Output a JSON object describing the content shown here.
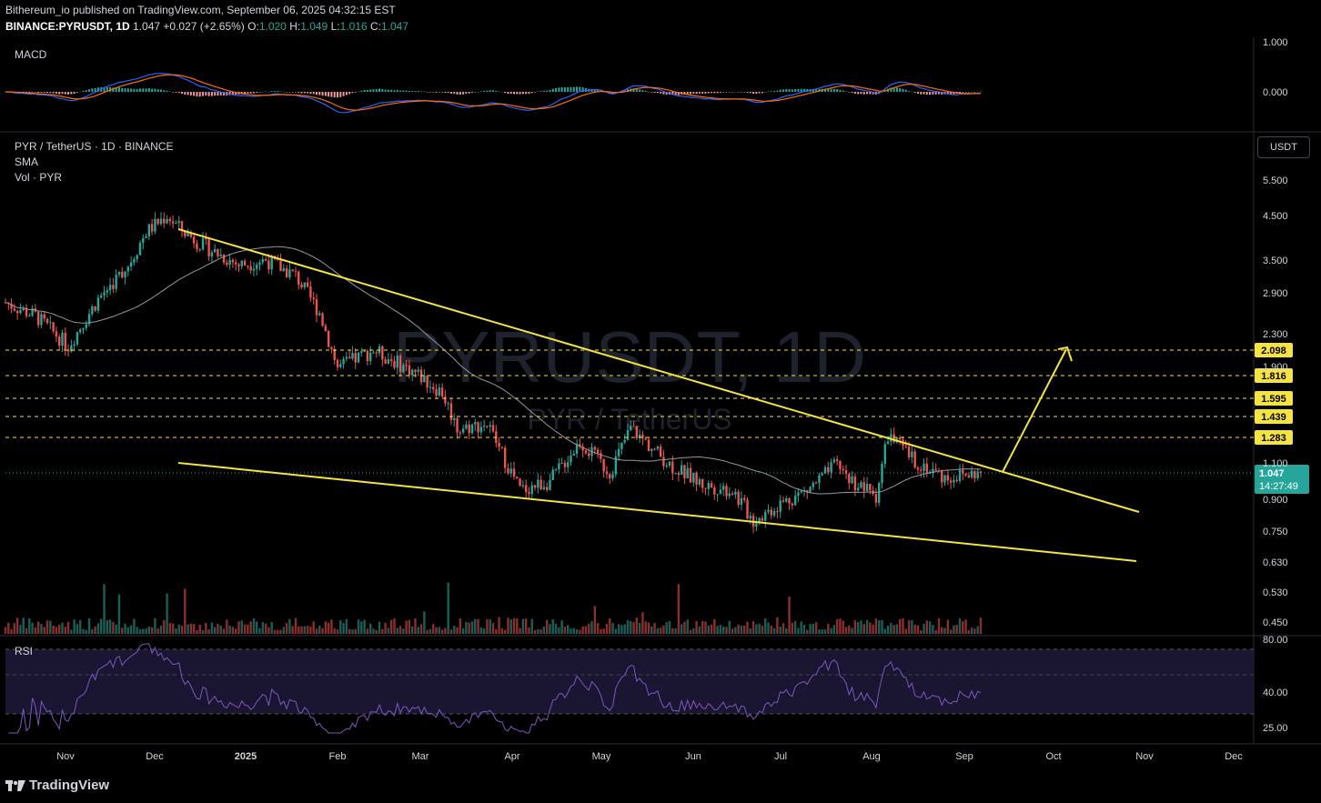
{
  "header": {
    "publisher_line": "Bithereum_io published on TradingView.com, September 06, 2025 04:32:15 EST",
    "symbol": "BINANCE:PYRUSDT, 1D",
    "last": "1.047",
    "change": "+0.027 (+2.65%)",
    "o_label": "O:",
    "o": "1.020",
    "h_label": "H:",
    "h": "1.049",
    "l_label": "L:",
    "l": "1.016",
    "c_label": "C:",
    "c": "1.047"
  },
  "legend": {
    "macd": "MACD",
    "pair": "PYR / TetherUS · 1D · BINANCE",
    "sma": "SMA",
    "vol": "Vol · PYR",
    "rsi": "RSI"
  },
  "watermark": {
    "main": "PYRUSDT, 1D",
    "sub": "PYR / TetherUS"
  },
  "currency_button": "USDT",
  "footer": {
    "brand": "TradingView"
  },
  "colors": {
    "up": "#26a69a",
    "down": "#ef5350",
    "trend": "#f5e342",
    "sma": "#9598a1",
    "rsi": "#7e57c2",
    "macd": "#2962ff",
    "signal": "#ff6d00",
    "label_bg": "#f5e342",
    "price_bg": "#26a69a"
  },
  "chart_data": {
    "type": "candlestick",
    "x_axis_labels": [
      "Nov",
      "Dec",
      "2025",
      "Feb",
      "Mar",
      "Apr",
      "May",
      "Jun",
      "Jul",
      "Aug",
      "Sep",
      "Oct",
      "Nov",
      "Dec"
    ],
    "price_axis": {
      "scale": "log",
      "ticks": [
        "5.500",
        "4.500",
        "3.500",
        "2.900",
        "2.300",
        "1.900",
        "1.100",
        "0.900",
        "0.750",
        "0.630",
        "0.530",
        "0.450"
      ]
    },
    "level_labels": [
      "2.098",
      "1.816",
      "1.595",
      "1.439",
      "1.283"
    ],
    "current_price": "1.047",
    "countdown": "14:27:49",
    "close_series": [
      {
        "date": "2024-10-15",
        "price": 2.75
      },
      {
        "date": "2024-10-25",
        "price": 2.55
      },
      {
        "date": "2024-11-05",
        "price": 2.15
      },
      {
        "date": "2024-11-15",
        "price": 2.8
      },
      {
        "date": "2024-11-25",
        "price": 3.4
      },
      {
        "date": "2024-12-01",
        "price": 4.1
      },
      {
        "date": "2024-12-08",
        "price": 4.5
      },
      {
        "date": "2024-12-12",
        "price": 4.2
      },
      {
        "date": "2024-12-20",
        "price": 3.8
      },
      {
        "date": "2025-01-01",
        "price": 3.4
      },
      {
        "date": "2025-01-10",
        "price": 3.5
      },
      {
        "date": "2025-01-20",
        "price": 3.2
      },
      {
        "date": "2025-01-28",
        "price": 2.6
      },
      {
        "date": "2025-02-03",
        "price": 1.9
      },
      {
        "date": "2025-02-15",
        "price": 2.1
      },
      {
        "date": "2025-03-01",
        "price": 1.85
      },
      {
        "date": "2025-03-10",
        "price": 1.65
      },
      {
        "date": "2025-03-15",
        "price": 1.35
      },
      {
        "date": "2025-03-25",
        "price": 1.38
      },
      {
        "date": "2025-04-05",
        "price": 0.95
      },
      {
        "date": "2025-04-15",
        "price": 1.0
      },
      {
        "date": "2025-04-25",
        "price": 1.25
      },
      {
        "date": "2025-05-05",
        "price": 1.05
      },
      {
        "date": "2025-05-12",
        "price": 1.35
      },
      {
        "date": "2025-05-25",
        "price": 1.1
      },
      {
        "date": "2025-06-05",
        "price": 0.98
      },
      {
        "date": "2025-06-15",
        "price": 0.95
      },
      {
        "date": "2025-06-22",
        "price": 0.8
      },
      {
        "date": "2025-07-01",
        "price": 0.88
      },
      {
        "date": "2025-07-10",
        "price": 0.95
      },
      {
        "date": "2025-07-20",
        "price": 1.1
      },
      {
        "date": "2025-07-25",
        "price": 1.0
      },
      {
        "date": "2025-08-02",
        "price": 0.92
      },
      {
        "date": "2025-08-06",
        "price": 1.3
      },
      {
        "date": "2025-08-15",
        "price": 1.12
      },
      {
        "date": "2025-08-25",
        "price": 1.02
      },
      {
        "date": "2025-09-06",
        "price": 1.047
      }
    ],
    "indicators": {
      "rsi_axis_ticks": [
        "80.00",
        "40.00",
        "25.00"
      ],
      "macd_axis_ticks": [
        "1.000",
        "0.000"
      ]
    }
  }
}
